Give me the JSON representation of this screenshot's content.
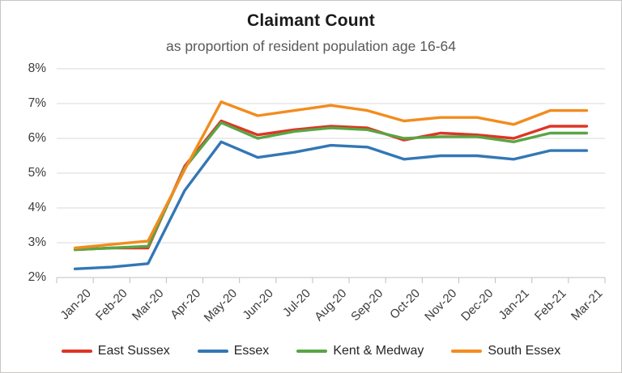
{
  "chart": {
    "title": "Claimant Count",
    "subtitle": "as proportion of resident population age 16-64"
  },
  "chart_data": {
    "type": "line",
    "title": "Claimant Count",
    "subtitle": "as proportion of resident population age 16-64",
    "categories": [
      "Jan-20",
      "Feb-20",
      "Mar-20",
      "Apr-20",
      "May-20",
      "Jun-20",
      "Jul-20",
      "Aug-20",
      "Sep-20",
      "Oct-20",
      "Nov-20",
      "Dec-20",
      "Jan-21",
      "Feb-21",
      "Mar-21"
    ],
    "series": [
      {
        "name": "East Sussex",
        "color": "#de3524",
        "values": [
          2.8,
          2.85,
          2.85,
          5.2,
          6.5,
          6.1,
          6.25,
          6.35,
          6.3,
          5.95,
          6.15,
          6.1,
          6.0,
          6.35,
          6.35
        ]
      },
      {
        "name": "Essex",
        "color": "#3377b5",
        "values": [
          2.25,
          2.3,
          2.4,
          4.5,
          5.9,
          5.45,
          5.6,
          5.8,
          5.75,
          5.4,
          5.5,
          5.5,
          5.4,
          5.65,
          5.65
        ]
      },
      {
        "name": "Kent & Medway",
        "color": "#5aa545",
        "values": [
          2.8,
          2.85,
          2.9,
          5.15,
          6.45,
          6.0,
          6.2,
          6.3,
          6.25,
          6.0,
          6.05,
          6.05,
          5.9,
          6.15,
          6.15
        ]
      },
      {
        "name": "South Essex",
        "color": "#f28c1e",
        "values": [
          2.85,
          2.95,
          3.05,
          5.1,
          7.05,
          6.65,
          6.8,
          6.95,
          6.8,
          6.5,
          6.6,
          6.6,
          6.4,
          6.8,
          6.8
        ]
      }
    ],
    "ylim": [
      2,
      8
    ],
    "ytick_labels": [
      "2%",
      "3%",
      "4%",
      "5%",
      "6%",
      "7%",
      "8%"
    ],
    "xlabel": "",
    "ylabel": "",
    "grid": true,
    "legend_position": "bottom",
    "colors": {
      "gridline": "#d9d9d9",
      "axis": "#bfbfbf",
      "title_text": "#1a1a1a",
      "subtitle_text": "#595959",
      "tick_text": "#3b3b3b"
    }
  }
}
